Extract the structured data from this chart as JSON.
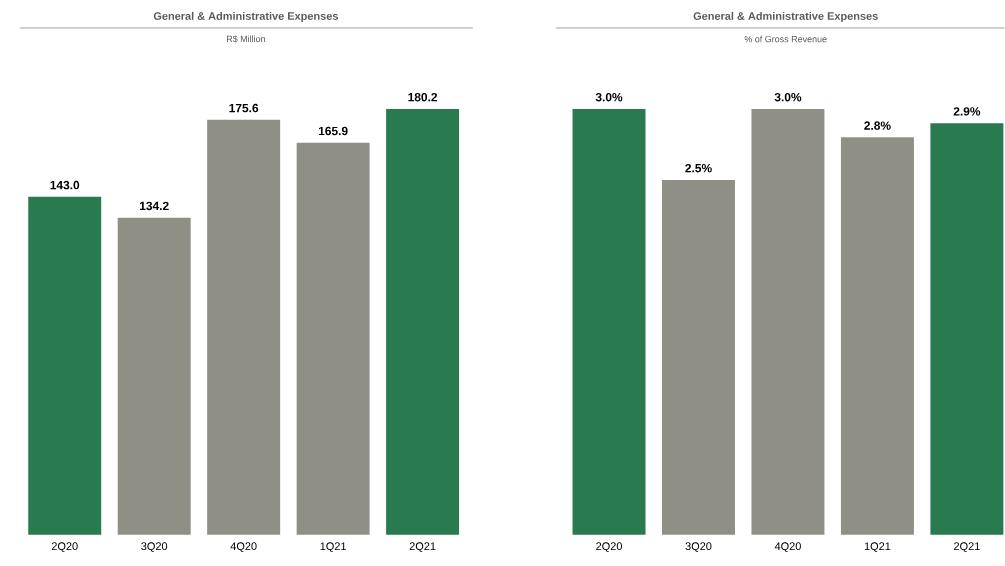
{
  "chart_data": [
    {
      "type": "bar",
      "title": "General & Administrative Expenses",
      "subtitle": "R$ Million",
      "categories": [
        "2Q20",
        "3Q20",
        "4Q20",
        "1Q21",
        "2Q21"
      ],
      "values": [
        143.0,
        134.2,
        175.6,
        165.9,
        180.2
      ],
      "colors": [
        "#2a7a4f",
        "#8f8f86",
        "#8f8f86",
        "#8f8f86",
        "#2a7a4f"
      ],
      "value_labels": [
        "143.0",
        "134.2",
        "175.6",
        "165.9",
        "180.2"
      ]
    },
    {
      "type": "bar",
      "title": "General & Administrative Expenses",
      "subtitle": "% of Gross Revenue",
      "categories": [
        "2Q20",
        "3Q20",
        "4Q20",
        "1Q21",
        "2Q21"
      ],
      "values": [
        3.0,
        2.5,
        3.0,
        2.8,
        2.9
      ],
      "colors": [
        "#2a7a4f",
        "#8f8f86",
        "#8f8f86",
        "#8f8f86",
        "#2a7a4f"
      ],
      "value_labels": [
        "3.0%",
        "2.5%",
        "3.0%",
        "2.8%",
        "2.9%"
      ]
    }
  ]
}
